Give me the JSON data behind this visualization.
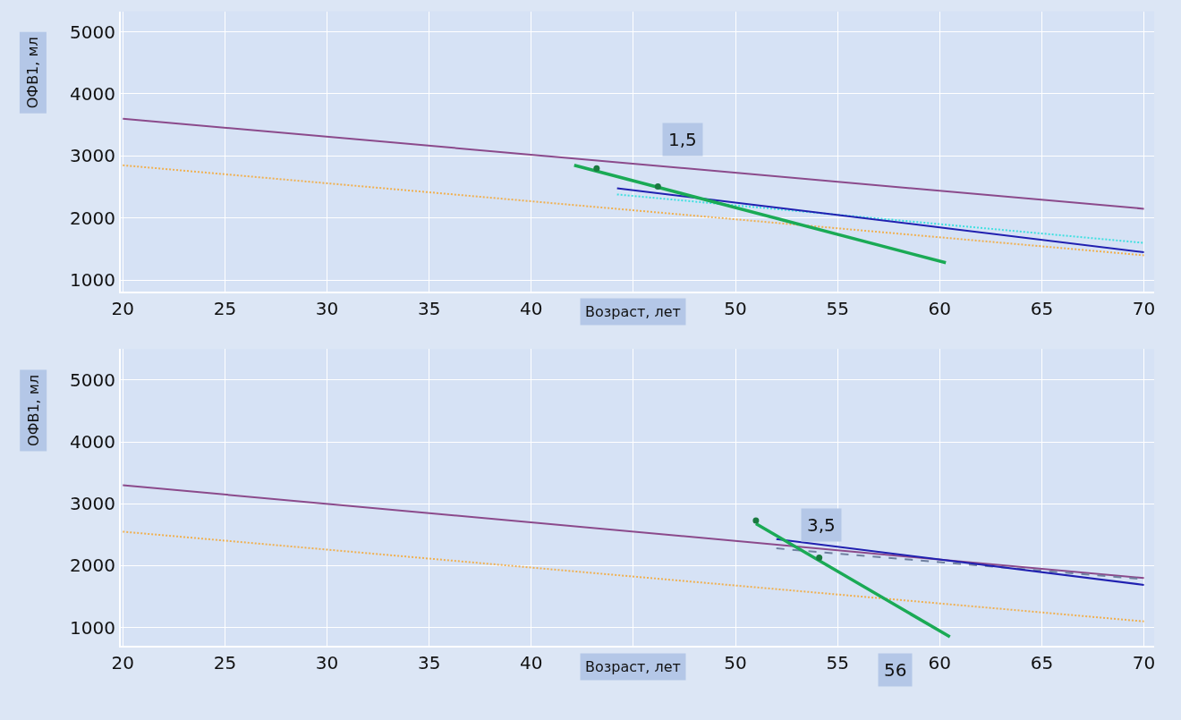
{
  "chart_data": [
    {
      "type": "line",
      "xlabel": "Возраст, лет",
      "ylabel": "ОФВ1, мл",
      "xlim": [
        19.9,
        70.5
      ],
      "ylim": [
        820,
        5330
      ],
      "xticks": [
        20,
        25,
        30,
        35,
        40,
        {
          "value": 45,
          "label": null
        },
        50,
        55,
        60,
        65,
        70
      ],
      "yticks": [
        1000,
        2000,
        3000,
        4000,
        5000
      ],
      "grid": true,
      "annotations": [
        "1,5"
      ],
      "series": [
        {
          "color": "#8b4a8b",
          "x": [
            20,
            70
          ],
          "values": [
            3600,
            2150
          ],
          "line_style": "solid"
        },
        {
          "color": "#f0b050",
          "x": [
            20,
            70
          ],
          "values": [
            2850,
            1400
          ],
          "line_style": "dotted"
        },
        {
          "color": "#40e0e0",
          "x": [
            44.2,
            70
          ],
          "values": [
            2380,
            1600
          ],
          "line_style": "dotted"
        },
        {
          "color": "#2020b0",
          "x": [
            44.2,
            70
          ],
          "values": [
            2480,
            1450
          ],
          "line_style": "solid"
        },
        {
          "color": "#1aaa55",
          "x": [
            42.1,
            60.3
          ],
          "values": [
            2850,
            1280
          ],
          "line_style": "solid"
        },
        {
          "type": "scatter",
          "color": "#1a7a40",
          "x": [
            43.2,
            46.2
          ],
          "values": [
            2800,
            2510
          ],
          "marker": "circle"
        }
      ]
    },
    {
      "type": "line",
      "xlabel": "Возраст, лет",
      "ylabel": "ОФВ1, мл",
      "xlim": [
        19.9,
        70.5
      ],
      "ylim": [
        700,
        5500
      ],
      "xticks": [
        20,
        25,
        30,
        35,
        40,
        {
          "value": 45,
          "label": null
        },
        50,
        55,
        60,
        65,
        70
      ],
      "yticks": [
        1000,
        2000,
        3000,
        4000,
        5000
      ],
      "grid": true,
      "annotations": [
        "3,5",
        "56"
      ],
      "series": [
        {
          "color": "#8b4a8b",
          "x": [
            20,
            70
          ],
          "values": [
            3300,
            1800
          ],
          "line_style": "solid"
        },
        {
          "color": "#f0b050",
          "x": [
            20,
            70
          ],
          "values": [
            2550,
            1100
          ],
          "line_style": "dotted"
        },
        {
          "color": "#7080a0",
          "x": [
            52,
            70
          ],
          "values": [
            2280,
            1780
          ],
          "line_style": "dashed"
        },
        {
          "color": "#2020b0",
          "x": [
            52,
            70
          ],
          "values": [
            2430,
            1690
          ],
          "line_style": "solid"
        },
        {
          "color": "#1aaa55",
          "x": [
            51,
            60.5
          ],
          "values": [
            2680,
            850
          ],
          "line_style": "solid"
        },
        {
          "type": "scatter",
          "color": "#1a7a40",
          "x": [
            51,
            54.1
          ],
          "values": [
            2730,
            2130
          ],
          "marker": "circle"
        }
      ]
    }
  ]
}
